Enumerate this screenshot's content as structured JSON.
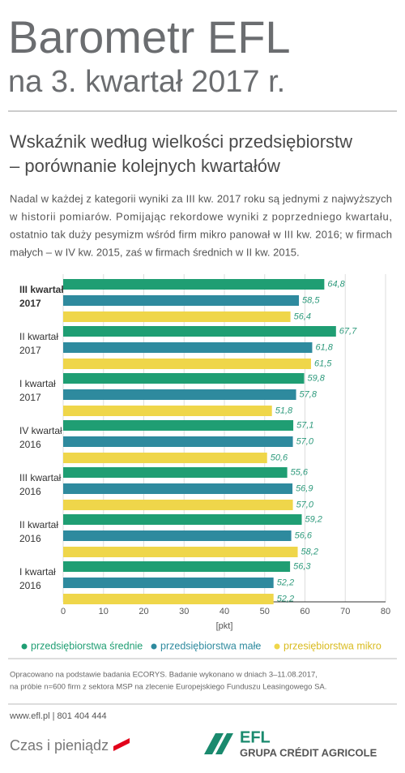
{
  "header": {
    "title": "Barometr EFL",
    "subtitle": "na 3. kwartał 2017 r."
  },
  "section_title": [
    "Wskaźnik według wielkości przedsiębiorstw",
    "– porównanie kolejnych kwartałów"
  ],
  "intro": [
    "Nadal w każdej z kategorii wyniki za III kw. 2017 roku są jednymi z najwyższych",
    "w historii pomiarów. Pomijając rekordowe wyniki z poprzedniego kwartału,",
    "ostatnio tak duży pesymizm wśród firm mikro panował w III kw. 2016; w firmach",
    "małych – w IV kw. 2015, zaś w firmach średnich w II kw. 2015."
  ],
  "chart_data": {
    "type": "hbar",
    "categories": [
      [
        "III kwartał",
        "2017"
      ],
      [
        "II kwartał",
        "2017"
      ],
      [
        "I kwartał",
        "2017"
      ],
      [
        "IV kwartał",
        "2016"
      ],
      [
        "III kwartał",
        "2016"
      ],
      [
        "II kwartał",
        "2016"
      ],
      [
        "I kwartał",
        "2016"
      ]
    ],
    "series": [
      {
        "name": "przedsiębiorstwa średnie",
        "color": "#1f9e73",
        "values": [
          64.8,
          67.7,
          59.8,
          57.1,
          55.6,
          59.2,
          56.3
        ],
        "value_labels": [
          "64,8",
          "67,7",
          "59,8",
          "57,1",
          "55,6",
          "59,2",
          "56,3"
        ]
      },
      {
        "name": "przedsiębiorstwa małe",
        "color": "#2e8a9e",
        "values": [
          58.5,
          61.8,
          57.8,
          57.0,
          56.9,
          56.6,
          52.2
        ],
        "value_labels": [
          "58,5",
          "61,8",
          "57,8",
          "57,0",
          "56,9",
          "56,6",
          "52,2"
        ]
      },
      {
        "name": "przesiębiorstwa mikro",
        "color": "#efd64a",
        "values": [
          56.4,
          61.5,
          51.8,
          50.6,
          57.0,
          58.2,
          52.2
        ],
        "value_labels": [
          "56,4",
          "61,5",
          "51,8",
          "50,6",
          "57,0",
          "58,2",
          "52,2"
        ]
      }
    ],
    "xlim": [
      0,
      80
    ],
    "xticks": [
      0,
      10,
      20,
      30,
      40,
      50,
      60,
      70,
      80
    ],
    "xlabel": "[pkt]",
    "grid": true
  },
  "footnote": [
    "Opracowano na podstawie badania ECORYS. Badanie wykonano w dniach 3–11.08.2017,",
    "na próbie n=600 firm z sektora MSP na zlecenie Europejskiego Funduszu Leasingowego SA."
  ],
  "contact": "www.efl.pl | 801 404 444",
  "footer": {
    "slogan": "Czas i pieniądz",
    "brand": "EFL",
    "group": "GRUPA CRÉDIT AGRICOLE"
  }
}
